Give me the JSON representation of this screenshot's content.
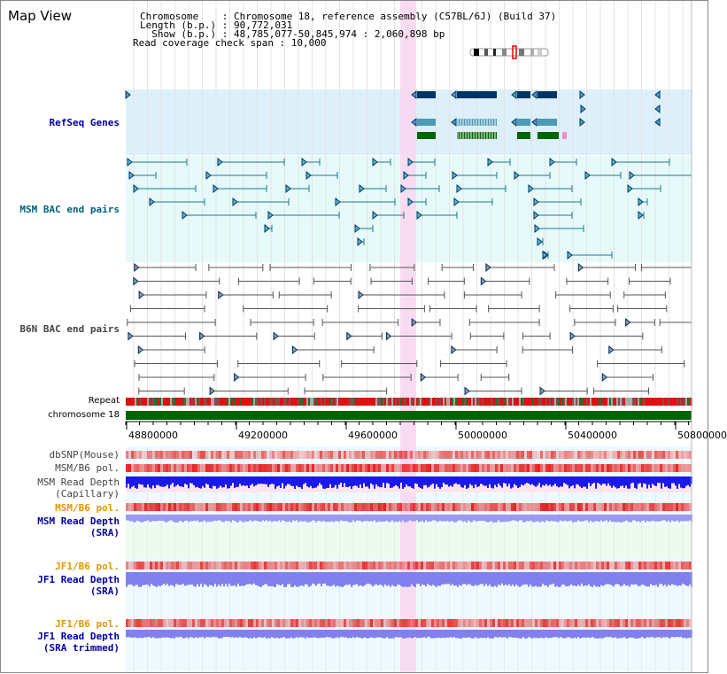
{
  "title": "Map View",
  "info": {
    "chromosome": "Chromosome    : Chromosome 18, reference assembly (C57BL/6J) (Build 37)",
    "length": "Length (b.p.) : 90,772,031",
    "show": "  Show (b.p.) : 48,785,077-50,845,974 : 2,060,898 bp",
    "coverage": "Read coverage check span : 10,000"
  },
  "tracks": {
    "refseq": "RefSeq Genes",
    "msm_bac": "MSM BAC end pairs",
    "b6n_bac": "B6N BAC end pairs",
    "repeat": "Repeat",
    "chromosome": "chromosome 18",
    "dbsnp": "dbSNP(Mouse)",
    "msm_b6_pol_a": "MSM/B6 pol.",
    "msm_depth_cap_1": "MSM Read Depth",
    "msm_depth_cap_2": "(Capillary)",
    "msm_b6_pol_b": "MSM/B6 pol.",
    "msm_depth_sra_1": "MSM Read Depth",
    "msm_depth_sra_2": "(SRA)",
    "jf1_b6_pol_a": "JF1/B6 pol.",
    "jf1_depth_sra_1": "JF1 Read Depth",
    "jf1_depth_sra_2": "(SRA)",
    "jf1_b6_pol_b": "JF1/B6 pol.",
    "jf1_depth_trim_1": "JF1 Read Depth",
    "jf1_depth_trim_2": "(SRA trimmed)"
  },
  "axis_ticks": [
    "48800000",
    "49200000",
    "49600000",
    "50000000",
    "50400000",
    "50800000"
  ],
  "colors": {
    "refseq_bg": "#ddf0fa",
    "msm_bg": "#e6fafa",
    "highlight": "#f9d6f0",
    "msm_label": "#006080",
    "refseq_label": "#0000a0",
    "b6n_label": "#444444",
    "pol_orange": "#e69500",
    "depth_blue": "#0000a0",
    "chrom_green": "#006400"
  }
}
